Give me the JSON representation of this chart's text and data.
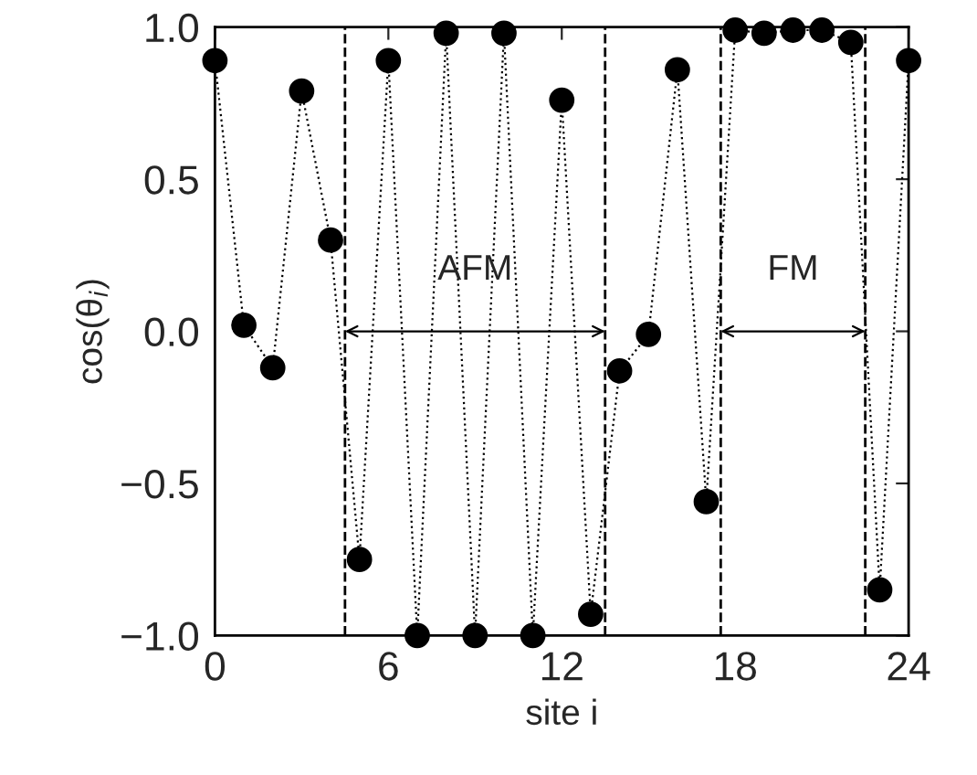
{
  "chart_data": {
    "type": "line",
    "xlabel": "site i",
    "ylabel": "cos(θ$_{i}$)",
    "x": [
      0,
      1,
      2,
      3,
      4,
      5,
      6,
      7,
      8,
      9,
      10,
      11,
      12,
      13,
      14,
      15,
      16,
      17,
      18,
      19,
      20,
      21,
      22,
      23,
      24
    ],
    "series": [
      {
        "color": "#000000",
        "values": [
          0.89,
          0.02,
          -0.12,
          0.79,
          0.3,
          -0.75,
          0.89,
          -1.0,
          0.98,
          -1.0,
          0.98,
          -1.0,
          0.76,
          -0.93,
          -0.13,
          -0.01,
          0.86,
          -0.56,
          0.99,
          0.98,
          0.99,
          0.99,
          0.95,
          -0.85,
          0.89
        ]
      }
    ],
    "marker": "circle",
    "line_style": "dotted",
    "grid": false,
    "legend": false,
    "xlim": [
      0,
      24
    ],
    "xticks": [
      0,
      6,
      12,
      18,
      24
    ],
    "ylim": [
      -1.0,
      1.0
    ],
    "yticks": [
      {
        "value": -1.0,
        "label": "−1.0"
      },
      {
        "value": -0.5,
        "label": "−0.5"
      },
      {
        "value": 0.0,
        "label": "0.0"
      },
      {
        "value": 0.5,
        "label": "0.5"
      },
      {
        "value": 1.0,
        "label": "1.0"
      }
    ],
    "ref_lines": [
      {
        "axis": "x",
        "value": 4.5,
        "line_style": "dashed"
      },
      {
        "axis": "x",
        "value": 13.5,
        "line_style": "dashed"
      },
      {
        "axis": "x",
        "value": 17.5,
        "line_style": "dashed"
      },
      {
        "axis": "x",
        "value": 22.5,
        "line_style": "dashed"
      }
    ],
    "annotations": [
      "AFM",
      "FM"
    ]
  }
}
